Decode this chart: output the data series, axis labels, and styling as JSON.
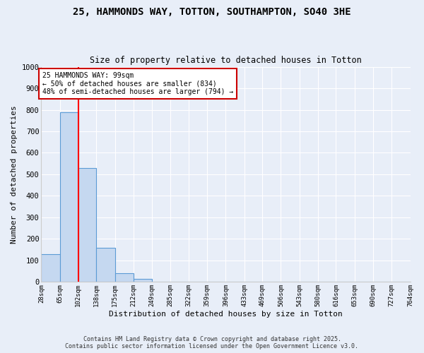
{
  "title": "25, HAMMONDS WAY, TOTTON, SOUTHAMPTON, SO40 3HE",
  "subtitle": "Size of property relative to detached houses in Totton",
  "xlabel": "Distribution of detached houses by size in Totton",
  "ylabel": "Number of detached properties",
  "footer_line1": "Contains HM Land Registry data © Crown copyright and database right 2025.",
  "footer_line2": "Contains public sector information licensed under the Open Government Licence v3.0.",
  "bin_edges": [
    28,
    65,
    102,
    138,
    175,
    212,
    249,
    285,
    322,
    359,
    396,
    433,
    469,
    506,
    543,
    580,
    616,
    653,
    690,
    727,
    764
  ],
  "bar_heights": [
    130,
    790,
    530,
    160,
    40,
    15,
    0,
    0,
    0,
    0,
    0,
    0,
    0,
    0,
    0,
    0,
    0,
    0,
    0,
    0
  ],
  "bar_color": "#c5d8f0",
  "bar_edge_color": "#5b9bd5",
  "bg_color": "#e8eef8",
  "grid_color": "#ffffff",
  "red_line_x": 102,
  "annotation_line1": "25 HAMMONDS WAY: 99sqm",
  "annotation_line2": "← 50% of detached houses are smaller (834)",
  "annotation_line3": "48% of semi-detached houses are larger (794) →",
  "annotation_box_color": "#ffffff",
  "annotation_box_edge_color": "#cc0000",
  "ylim": [
    0,
    1000
  ],
  "yticks": [
    0,
    100,
    200,
    300,
    400,
    500,
    600,
    700,
    800,
    900,
    1000
  ]
}
